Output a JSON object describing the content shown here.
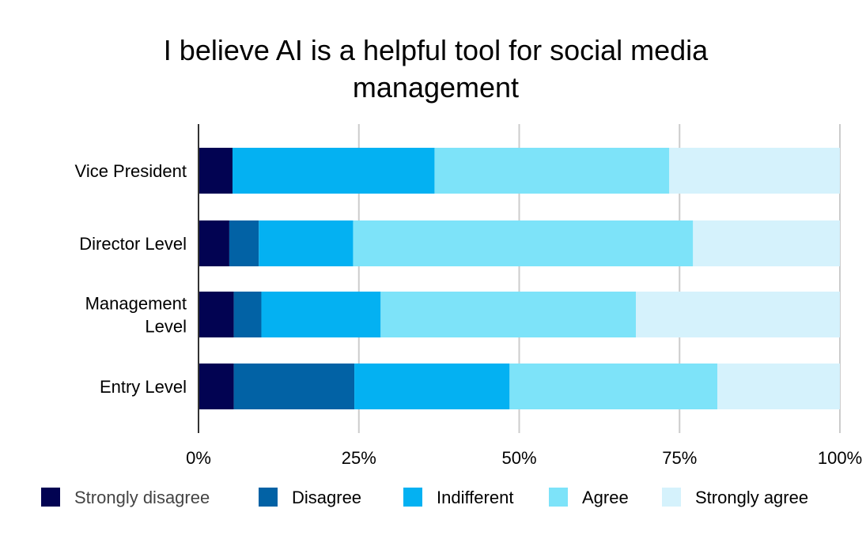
{
  "chart_data": {
    "type": "bar",
    "orientation": "horizontal",
    "stacked": "percent",
    "title_lines": [
      "I believe AI is a helpful tool for social media",
      "management"
    ],
    "xlabel": "",
    "ylabel": "",
    "categories": [
      [
        "Vice President"
      ],
      [
        "Director Level"
      ],
      [
        "Management",
        "Level"
      ],
      [
        "Entry Level"
      ]
    ],
    "xlim": [
      0,
      100
    ],
    "x_ticks": [
      "0%",
      "25%",
      "50%",
      "75%",
      "100%"
    ],
    "grid": "vertical",
    "legend_position": "bottom",
    "series": [
      {
        "name": "Strongly disagree",
        "color": "#020352",
        "values": [
          5.3,
          4.8,
          5.5,
          5.5
        ]
      },
      {
        "name": "Disagree",
        "color": "#0262a5",
        "values": [
          0,
          4.6,
          4.3,
          18.8
        ]
      },
      {
        "name": "Indifferent",
        "color": "#04b1f2",
        "values": [
          31.5,
          14.7,
          18.6,
          24.2
        ]
      },
      {
        "name": "Agree",
        "color": "#7de3f9",
        "values": [
          36.6,
          53.0,
          39.8,
          32.4
        ]
      },
      {
        "name": "Strongly agree",
        "color": "#d5f2fc",
        "values": [
          26.6,
          22.9,
          31.8,
          19.1
        ]
      }
    ]
  }
}
